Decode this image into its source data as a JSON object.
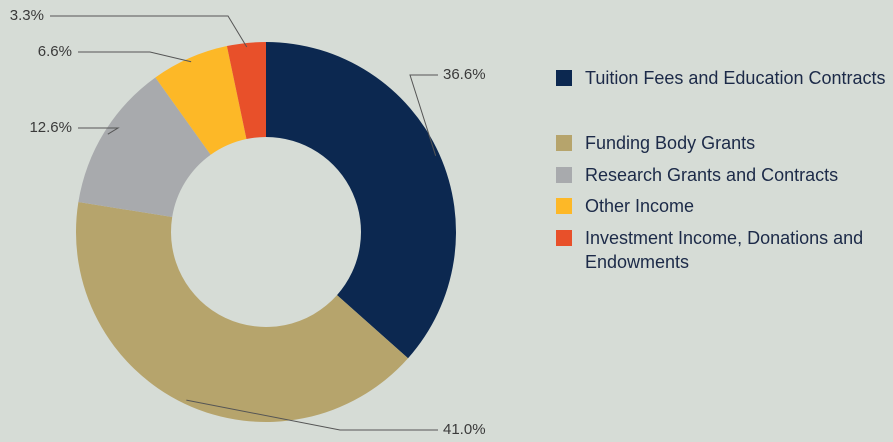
{
  "chart_data": {
    "type": "donut",
    "categories": [
      "Tuition Fees and Education Contracts",
      "Funding Body Grants",
      "Research Grants and Contracts",
      "Other Income",
      "Investment Income, Donations and Endowments"
    ],
    "values": [
      36.6,
      41.0,
      12.6,
      6.6,
      3.3
    ],
    "value_labels": [
      "36.6%",
      "41.0%",
      "12.6%",
      "6.6%",
      "3.3%"
    ],
    "colors": [
      "#0c2850",
      "#b6a46c",
      "#a8aaad",
      "#fdb827",
      "#e8502a"
    ],
    "legend": "right"
  }
}
